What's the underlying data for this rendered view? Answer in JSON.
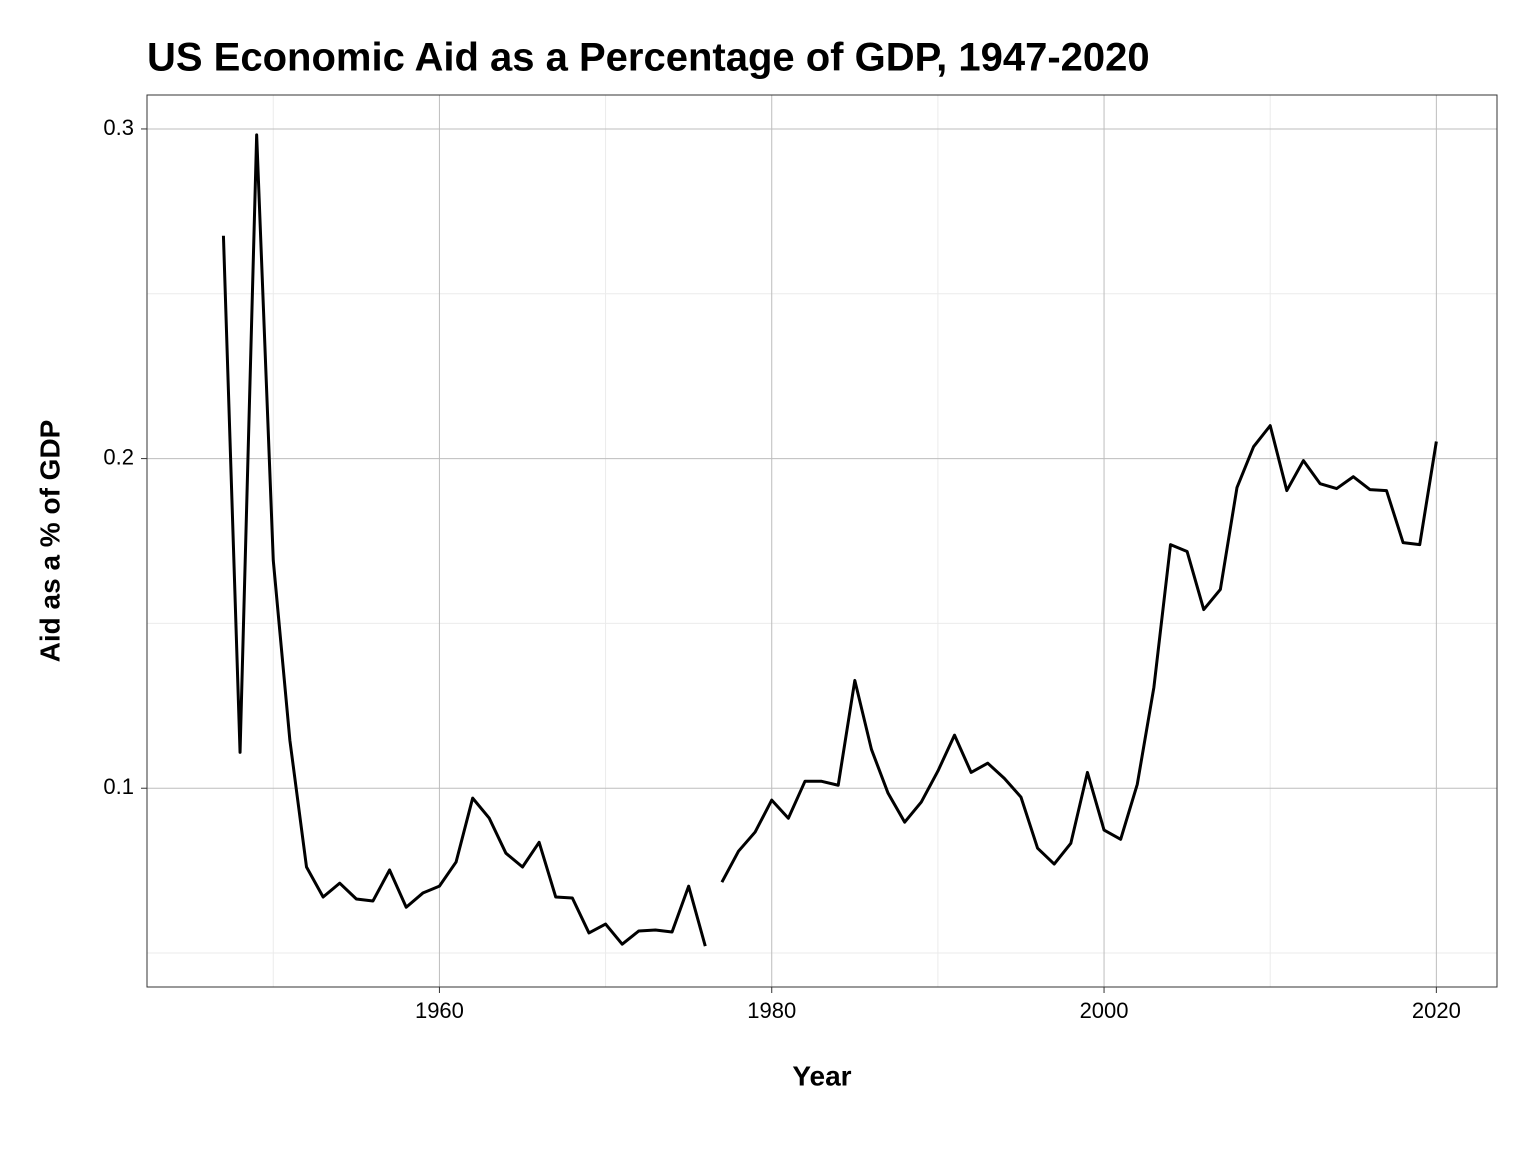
{
  "chart_data": {
    "type": "line",
    "title": "US Economic Aid as a Percentage of GDP, 1947-2020",
    "x_label": "Year",
    "y_label": "Aid as a % of GDP",
    "x": [
      1947,
      1948,
      1949,
      1950,
      1951,
      1952,
      1953,
      1954,
      1955,
      1956,
      1957,
      1958,
      1959,
      1960,
      1961,
      1962,
      1963,
      1964,
      1965,
      1966,
      1967,
      1968,
      1969,
      1970,
      1971,
      1972,
      1973,
      1974,
      1975,
      1976,
      1976.5,
      1977,
      1978,
      1979,
      1980,
      1981,
      1982,
      1983,
      1984,
      1985,
      1986,
      1987,
      1988,
      1989,
      1990,
      1991,
      1992,
      1993,
      1994,
      1995,
      1996,
      1997,
      1998,
      1999,
      2000,
      2001,
      2002,
      2003,
      2004,
      2005,
      2006,
      2007,
      2008,
      2009,
      2010,
      2011,
      2012,
      2013,
      2014,
      2015,
      2016,
      2017,
      2018,
      2019,
      2020
    ],
    "values": [
      0.2676,
      0.1109,
      0.2982,
      0.1691,
      0.1145,
      0.0761,
      0.067,
      0.0712,
      0.0664,
      0.0658,
      0.0752,
      0.0639,
      0.0682,
      0.0703,
      0.0776,
      0.097,
      0.0909,
      0.0803,
      0.0761,
      0.0836,
      0.067,
      0.0667,
      0.0561,
      0.0588,
      0.0527,
      0.0567,
      0.057,
      0.0564,
      0.0703,
      0.0521,
      null,
      0.0715,
      0.0809,
      0.0867,
      0.0964,
      0.0909,
      0.1021,
      0.1021,
      0.1009,
      0.1327,
      0.1118,
      0.0985,
      0.0897,
      0.0958,
      0.1052,
      0.1161,
      0.1048,
      0.1076,
      0.103,
      0.0973,
      0.0818,
      0.077,
      0.0833,
      0.1048,
      0.0873,
      0.0845,
      0.1012,
      0.1306,
      0.1739,
      0.1718,
      0.1542,
      0.1603,
      0.1912,
      0.2036,
      0.21,
      0.1903,
      0.1994,
      0.1924,
      0.1909,
      0.1945,
      0.1906,
      0.1903,
      0.1745,
      0.1739,
      0.2052
    ],
    "color": "#000000",
    "xlim": [
      1942.4,
      2023.65
    ],
    "xticks": [
      1960,
      1980,
      2000,
      2020
    ],
    "x_minor_ticks": [
      1950,
      1970,
      1990,
      2010
    ],
    "ylim": [
      0.0397,
      0.3103
    ],
    "yticks": [
      0.1,
      0.2,
      0.3
    ],
    "y_minor_ticks": [
      0.05,
      0.15,
      0.25
    ],
    "grid": true
  }
}
